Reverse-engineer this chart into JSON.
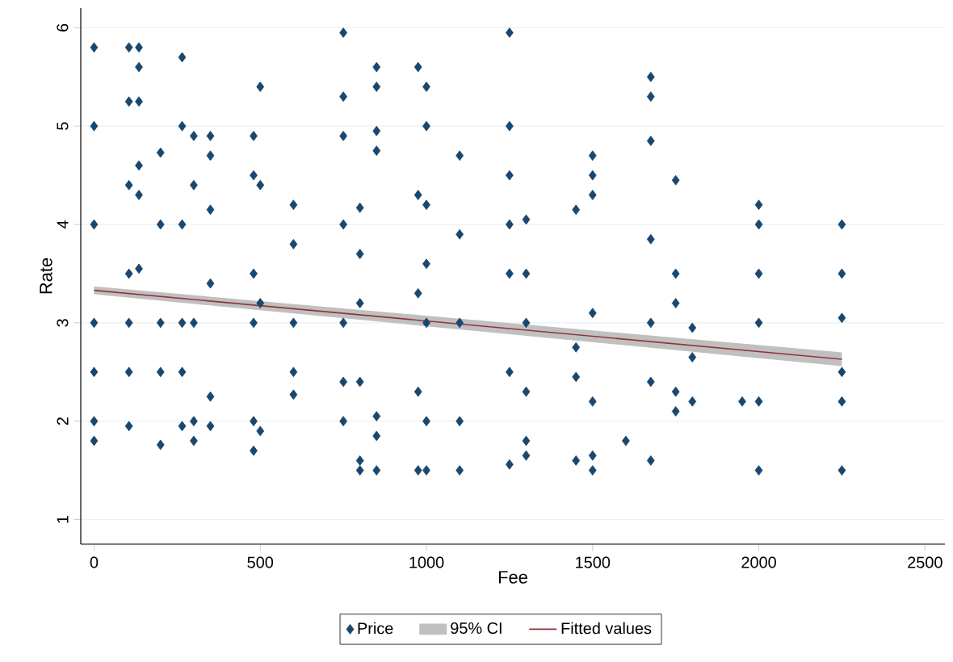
{
  "chart_data": {
    "type": "scatter",
    "xlabel": "Fee",
    "ylabel": "Rate",
    "xlim": [
      -40,
      2560
    ],
    "ylim": [
      0.75,
      6.2
    ],
    "xticks": [
      0,
      500,
      1000,
      1500,
      2000,
      2500
    ],
    "yticks": [
      1,
      2,
      3,
      4,
      5,
      6
    ],
    "grid": "y",
    "legend": "bottom",
    "series": [
      {
        "name": "Price",
        "type": "scatter",
        "marker": "diamond",
        "color": "#1a476f",
        "x": [
          0,
          0,
          0,
          0,
          0,
          0,
          0,
          105,
          105,
          105,
          105,
          105,
          105,
          105,
          135,
          135,
          135,
          135,
          135,
          135,
          200,
          200,
          200,
          200,
          200,
          265,
          265,
          265,
          265,
          265,
          265,
          300,
          300,
          300,
          300,
          300,
          350,
          350,
          350,
          350,
          350,
          350,
          480,
          480,
          480,
          480,
          480,
          480,
          500,
          500,
          500,
          500,
          600,
          600,
          600,
          600,
          600,
          750,
          750,
          750,
          750,
          750,
          750,
          750,
          800,
          800,
          800,
          800,
          800,
          800,
          850,
          850,
          850,
          850,
          850,
          850,
          850,
          975,
          975,
          975,
          975,
          975,
          1000,
          1000,
          1000,
          1000,
          1000,
          1000,
          1000,
          1100,
          1100,
          1100,
          1100,
          1100,
          1250,
          1250,
          1250,
          1250,
          1250,
          1250,
          1250,
          1300,
          1300,
          1300,
          1300,
          1300,
          1300,
          1450,
          1450,
          1450,
          1450,
          1500,
          1500,
          1500,
          1500,
          1500,
          1500,
          1500,
          1600,
          1675,
          1675,
          1675,
          1675,
          1675,
          1675,
          1675,
          1750,
          1750,
          1750,
          1750,
          1750,
          1800,
          1800,
          1800,
          1950,
          2000,
          2000,
          2000,
          2000,
          2000,
          2000,
          2250,
          2250,
          2250,
          2250,
          2250,
          2250
        ],
        "values": [
          5.8,
          5.0,
          4.0,
          3.0,
          2.5,
          2.0,
          1.8,
          5.8,
          5.25,
          4.4,
          3.5,
          3.0,
          2.5,
          1.95,
          5.8,
          5.6,
          5.25,
          4.6,
          4.3,
          3.55,
          4.73,
          4.0,
          3.0,
          2.5,
          1.76,
          5.7,
          5.0,
          4.0,
          3.0,
          2.5,
          1.95,
          4.9,
          4.4,
          3.0,
          2.0,
          1.8,
          4.9,
          4.7,
          4.15,
          3.4,
          2.25,
          1.95,
          4.9,
          4.5,
          3.5,
          3.0,
          2.0,
          1.7,
          5.4,
          4.4,
          3.2,
          1.9,
          4.2,
          3.8,
          3.0,
          2.5,
          2.27,
          5.95,
          5.3,
          4.9,
          4.0,
          3.0,
          2.4,
          2.0,
          4.17,
          3.7,
          3.2,
          2.4,
          1.6,
          1.5,
          5.6,
          5.4,
          4.95,
          4.75,
          2.05,
          1.85,
          1.5,
          5.6,
          4.3,
          3.3,
          2.3,
          1.5,
          5.4,
          5.0,
          4.2,
          3.6,
          3.0,
          2.0,
          1.5,
          4.7,
          3.9,
          3.0,
          2.0,
          1.5,
          5.95,
          5.0,
          4.5,
          4.0,
          3.5,
          2.5,
          1.56,
          4.05,
          3.5,
          3.0,
          2.3,
          1.8,
          1.65,
          4.15,
          2.75,
          2.45,
          1.6,
          4.7,
          4.5,
          4.3,
          3.1,
          2.2,
          1.65,
          1.5,
          1.8,
          5.5,
          5.3,
          4.85,
          3.85,
          3.0,
          2.4,
          1.6,
          4.45,
          3.5,
          3.2,
          2.3,
          2.1,
          2.95,
          2.65,
          2.2,
          2.2,
          4.2,
          4.0,
          3.5,
          3.0,
          2.2,
          1.5,
          4.0,
          3.5,
          3.05,
          2.5,
          2.2,
          1.5
        ]
      },
      {
        "name": "Fitted values",
        "type": "line",
        "color": "#90353b",
        "x": [
          0,
          2250
        ],
        "values": [
          3.33,
          2.63
        ],
        "lower": [
          3.29,
          2.56
        ],
        "upper": [
          3.37,
          2.7
        ]
      }
    ],
    "annotations": [
      "95% CI"
    ]
  }
}
